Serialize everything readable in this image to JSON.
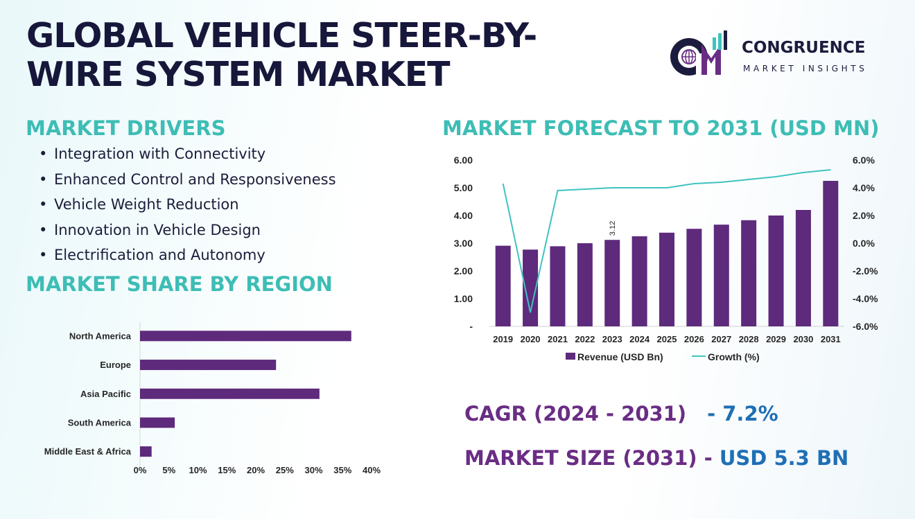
{
  "title": "GLOBAL VEHICLE STEER-BY-WIRE SYSTEM MARKET",
  "logo": {
    "name": "CONGRUENCE",
    "tagline": "MARKET INSIGHTS",
    "mark": "CM"
  },
  "drivers": {
    "heading": "MARKET DRIVERS",
    "items": [
      "Integration with Connectivity",
      "Enhanced Control and Responsiveness",
      "Vehicle Weight Reduction",
      "Innovation in Vehicle Design",
      "Electrification and Autonomy"
    ]
  },
  "region": {
    "heading": "MARKET SHARE BY REGION"
  },
  "forecast": {
    "heading": "MARKET FORECAST TO 2031 (USD MN)"
  },
  "stats": {
    "cagr_label": "CAGR (2024 - 2031)",
    "cagr_value": "- 7.2%",
    "size_label": "MARKET SIZE (2031) -",
    "size_value": "USD 5.3 BN"
  },
  "colors": {
    "bar": "#5e2a7c",
    "line": "#3fc3bf",
    "heading": "#3dbdb5",
    "title": "#16173a"
  },
  "chart_data": [
    {
      "type": "bar",
      "orientation": "horizontal",
      "categories": [
        "North America",
        "Europe",
        "Asia Pacific",
        "South America",
        "Middle East & Africa"
      ],
      "values": [
        36.5,
        23.5,
        31,
        6,
        2
      ],
      "xlim": [
        0,
        40
      ],
      "xticks": [
        "0%",
        "5%",
        "10%",
        "15%",
        "20%",
        "25%",
        "30%",
        "35%",
        "40%"
      ],
      "grid": false
    },
    {
      "type": "bar",
      "categories": [
        "2019",
        "2020",
        "2021",
        "2022",
        "2023",
        "2024",
        "2025",
        "2026",
        "2027",
        "2028",
        "2029",
        "2030",
        "2031"
      ],
      "series": [
        {
          "name": "Revenue (USD Bn)",
          "type": "bar",
          "axis": "left",
          "values": [
            2.91,
            2.77,
            2.89,
            3.0,
            3.12,
            3.25,
            3.38,
            3.52,
            3.67,
            3.83,
            4.0,
            4.2,
            5.25
          ]
        },
        {
          "name": "Growth (%)",
          "type": "line",
          "axis": "right",
          "values": [
            4.3,
            -5.0,
            3.8,
            3.9,
            4.0,
            4.0,
            4.0,
            4.3,
            4.4,
            4.6,
            4.8,
            5.1,
            5.3
          ]
        }
      ],
      "data_labels": [
        {
          "category": "2023",
          "text": "3.12"
        }
      ],
      "ylim": [
        0,
        6
      ],
      "yticks": [
        "-",
        "1.00",
        "2.00",
        "3.00",
        "4.00",
        "5.00",
        "6.00"
      ],
      "y2lim": [
        -6,
        6
      ],
      "y2ticks": [
        "-6.0%",
        "-4.0%",
        "-2.0%",
        "0.0%",
        "2.0%",
        "4.0%",
        "6.0%"
      ],
      "legend": "bottom",
      "grid": false
    }
  ]
}
